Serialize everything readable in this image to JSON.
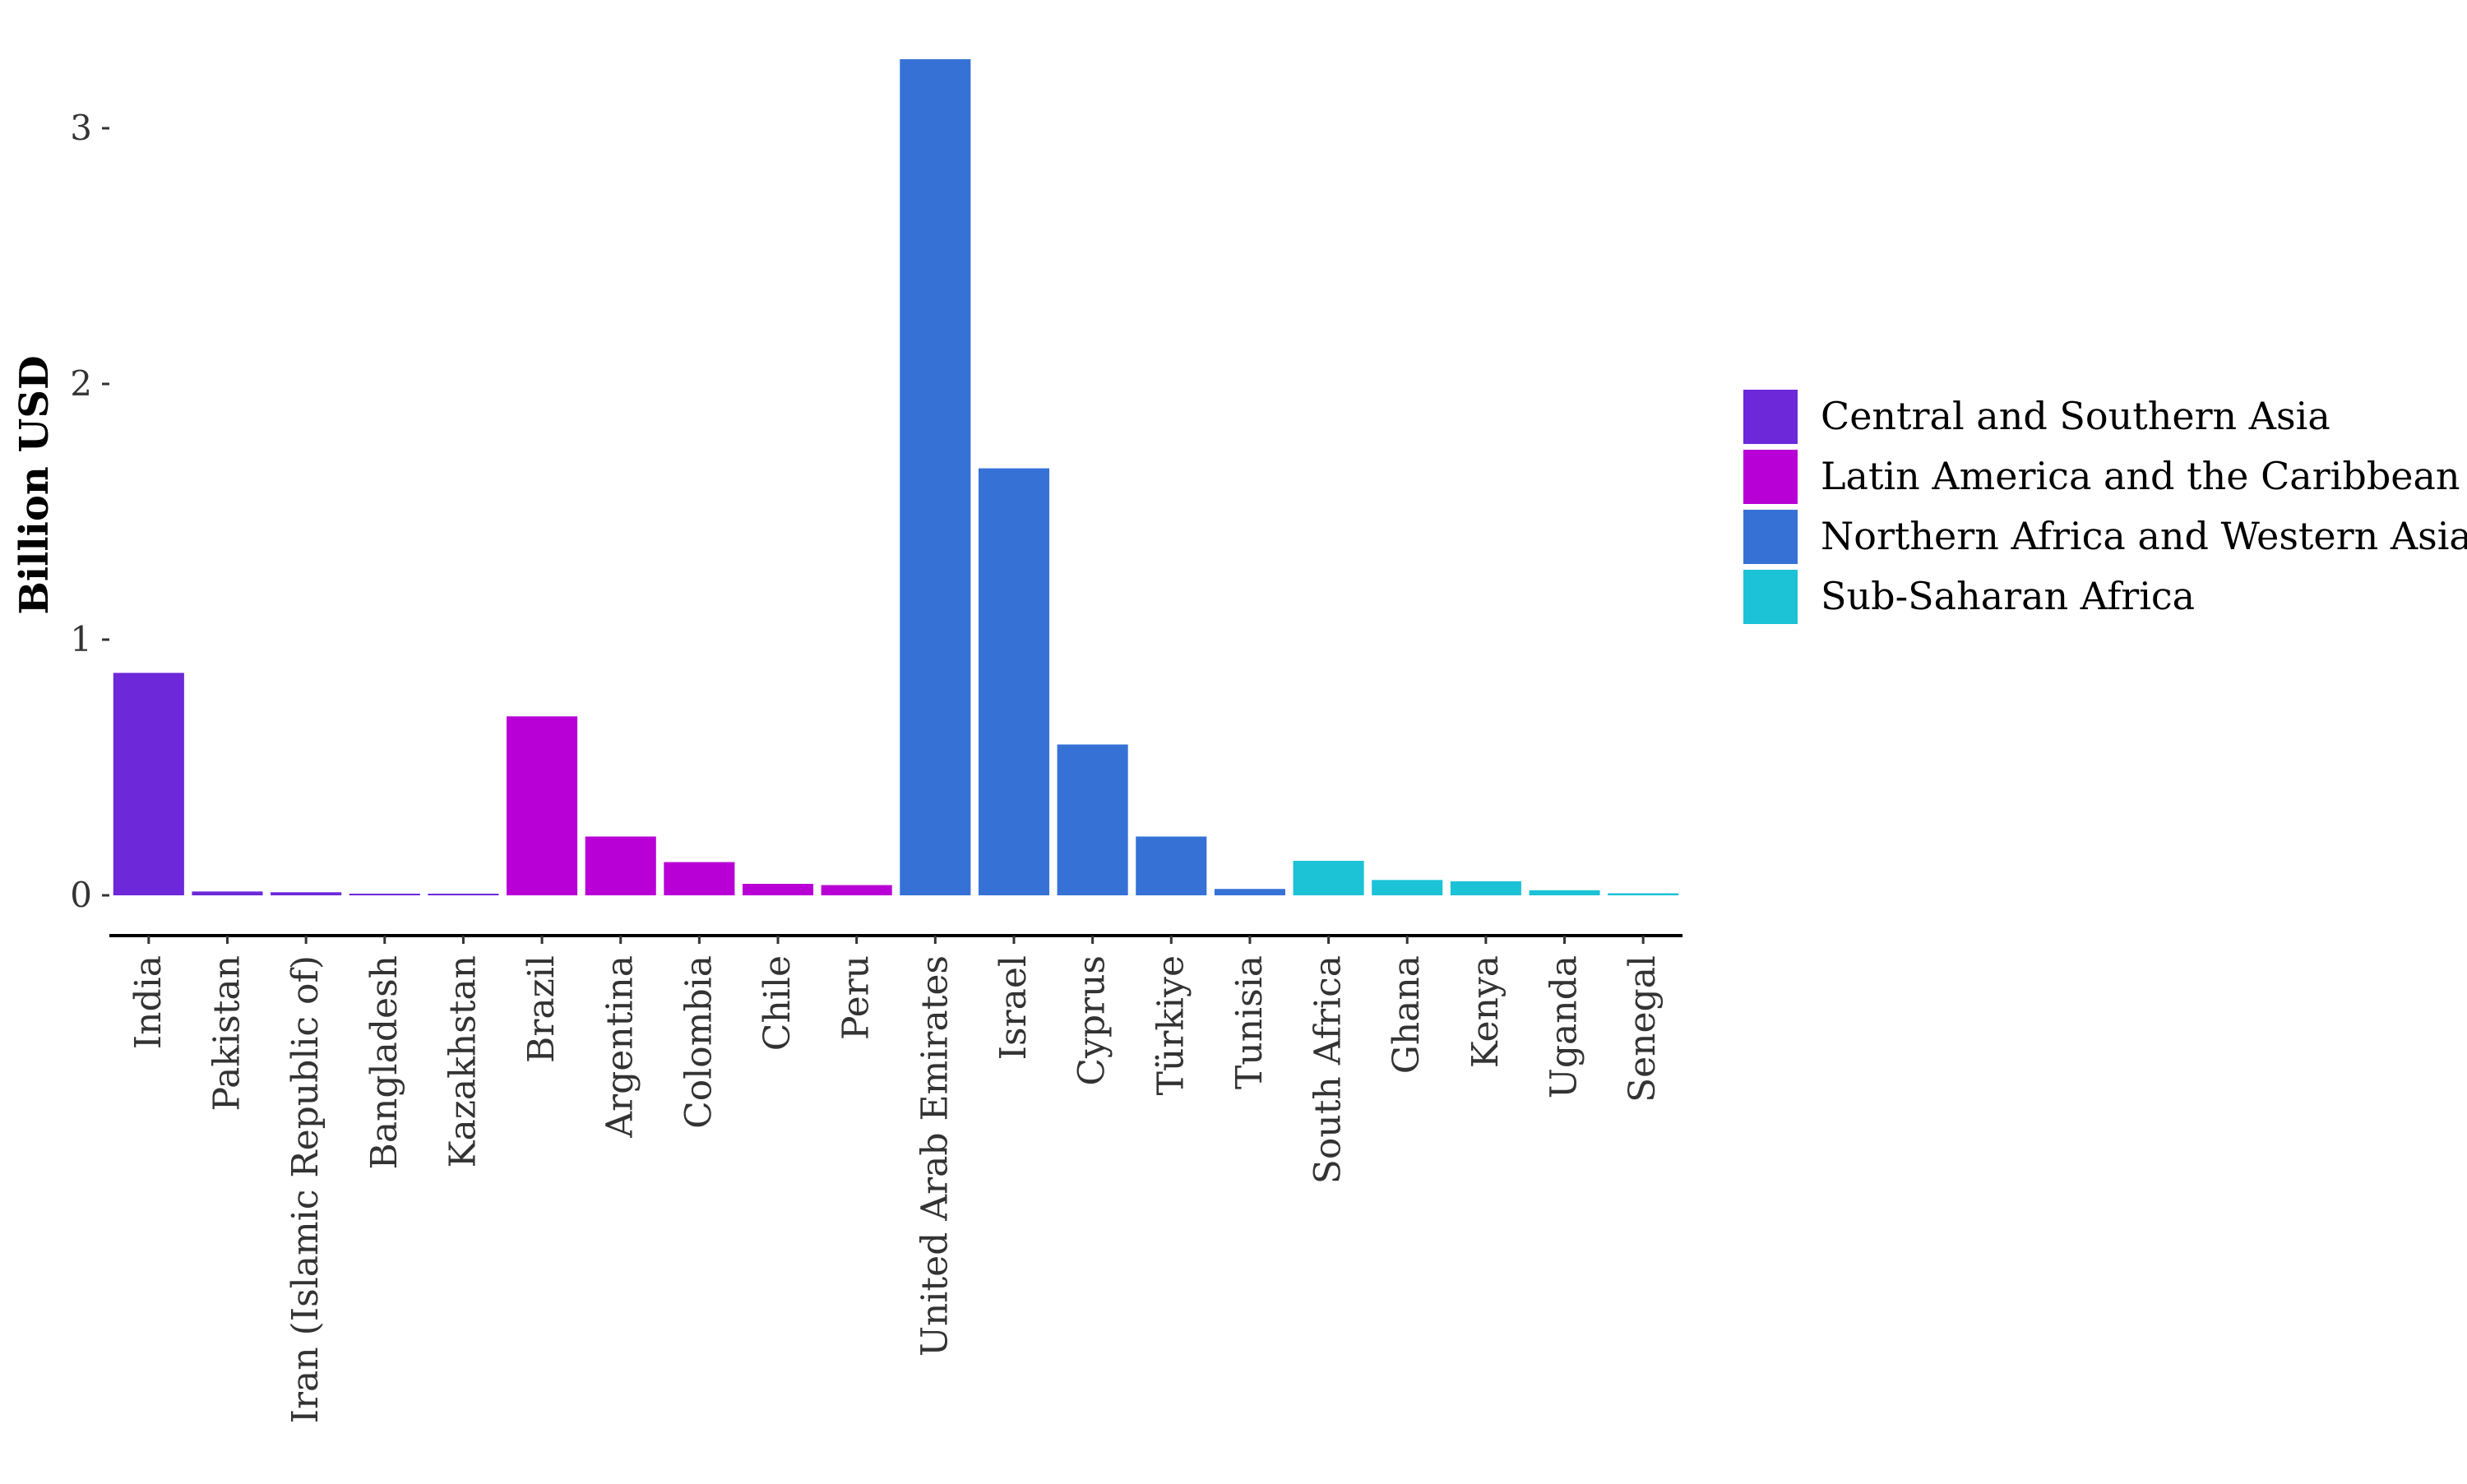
{
  "chart_data": {
    "type": "bar",
    "title": "",
    "xlabel": "",
    "ylabel": "Billion USD",
    "ylim": [
      -0.16,
      3.3
    ],
    "yticks": [
      0,
      1,
      2,
      3
    ],
    "grid": false,
    "legend_position": "right",
    "categories": [
      "India",
      "Pakistan",
      "Iran (Islamic Republic of)",
      "Bangladesh",
      "Kazakhstan",
      "Brazil",
      "Argentina",
      "Colombia",
      "Chile",
      "Peru",
      "United Arab Emirates",
      "Israel",
      "Cyprus",
      "Türkiye",
      "Tunisia",
      "South Africa",
      "Ghana",
      "Kenya",
      "Uganda",
      "Senegal"
    ],
    "values": [
      0.87,
      0.015,
      0.012,
      0.006,
      0.004,
      0.7,
      0.23,
      0.13,
      0.045,
      0.04,
      3.27,
      1.67,
      0.59,
      0.23,
      0.025,
      0.135,
      0.06,
      0.055,
      0.02,
      0.008
    ],
    "groups": [
      "Central and Southern Asia",
      "Central and Southern Asia",
      "Central and Southern Asia",
      "Central and Southern Asia",
      "Central and Southern Asia",
      "Latin America and the Caribbean",
      "Latin America and the Caribbean",
      "Latin America and the Caribbean",
      "Latin America and the Caribbean",
      "Latin America and the Caribbean",
      "Northern Africa and Western Asia",
      "Northern Africa and Western Asia",
      "Northern Africa and Western Asia",
      "Northern Africa and Western Asia",
      "Northern Africa and Western Asia",
      "Sub-Saharan Africa",
      "Sub-Saharan Africa",
      "Sub-Saharan Africa",
      "Sub-Saharan Africa",
      "Sub-Saharan Africa"
    ],
    "legend": [
      {
        "name": "Central and Southern Asia",
        "color": "#6c28d9"
      },
      {
        "name": "Latin America and the Caribbean",
        "color": "#b800d6"
      },
      {
        "name": "Northern Africa and Western Asia",
        "color": "#3672d6"
      },
      {
        "name": "Sub-Saharan Africa",
        "color": "#1cc2d6"
      }
    ]
  }
}
